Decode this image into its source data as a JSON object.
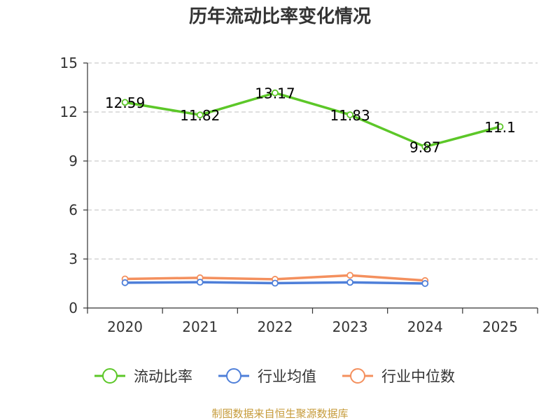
{
  "chart_data": {
    "type": "line",
    "title": "历年流动比率变化情况",
    "categories": [
      "2020",
      "2021",
      "2022",
      "2023",
      "2024",
      "2025"
    ],
    "ylim": [
      0,
      15
    ],
    "yticks": [
      0,
      3,
      6,
      9,
      12,
      15
    ],
    "grid": true,
    "legend_position": "bottom",
    "series": [
      {
        "name": "流动比率",
        "color": "#5cc728",
        "values": [
          12.59,
          11.82,
          13.17,
          11.83,
          9.87,
          11.1
        ],
        "show_labels": true
      },
      {
        "name": "行业均值",
        "color": "#4e7fd9",
        "values": [
          1.55,
          1.58,
          1.52,
          1.57,
          1.5,
          null
        ],
        "show_labels": false
      },
      {
        "name": "行业中位数",
        "color": "#f4905e",
        "values": [
          1.78,
          1.85,
          1.76,
          2.0,
          1.68,
          null
        ],
        "show_labels": false
      }
    ]
  },
  "source_text": "制图数据来自恒生聚源数据库"
}
